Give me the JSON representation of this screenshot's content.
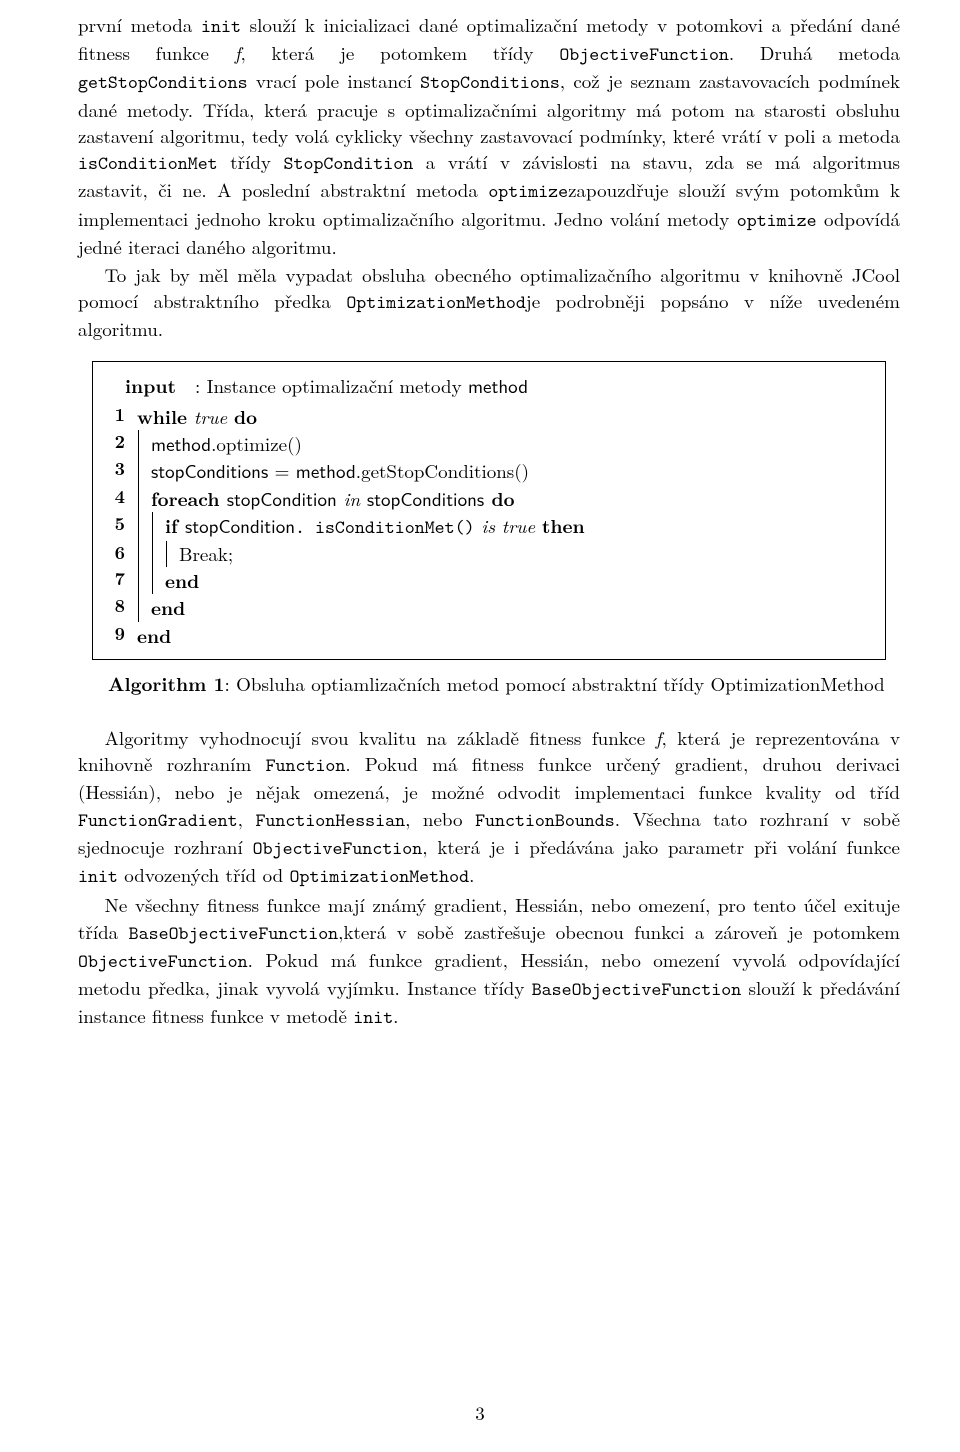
{
  "para1": {
    "seg1": "první metoda ",
    "code1": "init",
    "seg2": " slouží k inicializaci dané optimalizační metody v potomkovi a předání dané fitness funkce ",
    "fit": "f",
    "seg3": ", která je potomkem třídy ",
    "code2": "ObjectiveFunction",
    "seg4": ". Druhá metoda ",
    "code3": "getStopConditions",
    "seg5": " vrací pole instancí ",
    "code4": "StopConditions",
    "seg6": ", což je seznam zastavovacích podmínek dané metody. Třída, která pracuje s optimalizačními algoritmy má potom na starosti obsluhu zastavení algoritmu, tedy volá cyklicky všechny zastavovací podmínky, které vrátí v poli a metoda ",
    "code5": "isConditionMet",
    "seg7": " třídy ",
    "code6": "StopCondition",
    "seg8": " a vrátí v závislosti na stavu, zda se má algoritmus zastavit, či ne. A poslední abstraktní metoda ",
    "code7": "optimize",
    "seg9": "zapouzdřuje slouží svým potomkům k implementaci jednoho kroku optimalizačního algoritmu. Jedno volání metody ",
    "code8": "optimize",
    "seg10": " odpovídá jedné iteraci daného algoritmu."
  },
  "para2": {
    "seg1": "To jak by měl měla vypadat obsluha obecného optimalizačního algoritmu v knihovně JCool pomocí abstraktního předka ",
    "code1": "OptimizationMethod",
    "seg2": "je podrobněji popsáno v níže uvedeném algoritmu."
  },
  "algo": {
    "input_label": "input",
    "input_text": ": Instance optimalizační metody ",
    "input_code": "method",
    "l1_kw1": "while",
    "l1_it": " true ",
    "l1_kw2": "do",
    "l2": "method",
    "l2b": ".optimize()",
    "l3a": "stopConditions",
    "l3eq": " = ",
    "l3b": "method",
    "l3c": ".getStopConditions()",
    "l4_kw1": "foreach ",
    "l4a": "stopCondition",
    "l4_it": " in ",
    "l4b": "stopConditions",
    "l4_kw2": " do",
    "l5_kw1": "if ",
    "l5a": "stopCondition",
    "l5b": ". isConditionMet()",
    "l5_it": " is true ",
    "l5_kw2": "then",
    "l6": "Break;",
    "l7": "end",
    "l8": "end",
    "l9": "end",
    "cap_head": "Algorithm 1",
    "cap_text": ": Obsluha optiamlizačních metod pomocí abstraktní třídy OptimizationMethod",
    "ln1": "1",
    "ln2": "2",
    "ln3": "3",
    "ln4": "4",
    "ln5": "5",
    "ln6": "6",
    "ln7": "7",
    "ln8": "8",
    "ln9": "9"
  },
  "para3": {
    "seg1": "Algoritmy vyhodnocují svou kvalitu na základě fitness funkce ",
    "fit": "f",
    "seg2": ", která je reprezentována v knihovně rozhraním ",
    "code1": "Function",
    "seg3": ". Pokud má fitness funkce určený gradient, druhou derivaci (Hessián), nebo je nějak omezená, je možné odvodit implementaci funkce kvality od tříd ",
    "code2": "FunctionGradient",
    "seg4": ", ",
    "code3": "FunctionHessian",
    "seg5": ", nebo ",
    "code4": "FunctionBounds",
    "seg6": ". Všechna tato rozhraní v sobě sjednocuje rozhraní ",
    "code5": "ObjectiveFunction",
    "seg7": ", která je i předávána jako parametr při volání funkce ",
    "code6": "init",
    "seg8": " odvozených tříd od ",
    "code7": "OptimizationMethod",
    "seg9": "."
  },
  "para4": {
    "seg1": "Ne všechny fitness funkce mají známý gradient, Hessián, nebo omezení, pro tento účel exituje třída ",
    "code1": "BaseObjectiveFunction",
    "seg2": ",která v sobě zastřešuje obecnou funkci a zároveň je potomkem ",
    "code2": "ObjectiveFunction",
    "seg3": ". Pokud má funkce gradient, Hessián, nebo omezení vyvolá odpovídající metodu předka, jinak vyvolá vyjímku. Instance třídy ",
    "code3": "BaseObjectiveFunction",
    "seg4": " slouží k předávání instance fitness funkce v metodě ",
    "code4": "init",
    "seg5": "."
  },
  "pagenum": "3"
}
